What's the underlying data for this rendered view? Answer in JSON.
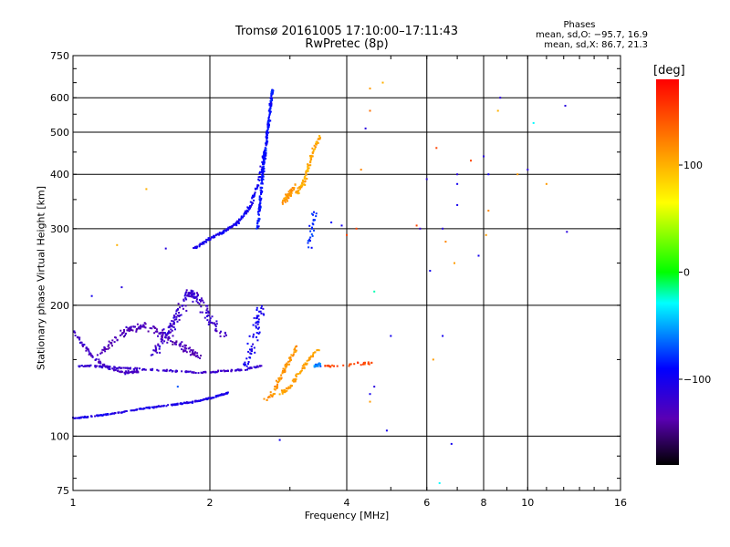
{
  "chart_data": {
    "type": "scatter",
    "title": "Tromsø 20161005 17:10:00–17:11:43",
    "subtitle": "RwPretec (8p)",
    "xlabel": "Frequency [MHz]",
    "ylabel": "Stationary phase Virtual Height [km]",
    "x_scale": "log",
    "y_scale": "log",
    "xlim": [
      1,
      16
    ],
    "ylim": [
      75,
      750
    ],
    "x_ticks": [
      1,
      2,
      4,
      6,
      8,
      10,
      16
    ],
    "y_ticks": [
      75,
      100,
      200,
      300,
      400,
      500,
      600,
      750
    ],
    "grid": true,
    "phase_legend": {
      "title": "Phases",
      "o_mode": "mean, sd,O: −95.7, 16.9",
      "x_mode": "mean, sd,X:  86.7, 21.3"
    },
    "colorbar": {
      "unit": "[deg]",
      "range": [
        -180,
        180
      ],
      "ticks": [
        100,
        0,
        -100
      ],
      "tick_labels": [
        "100",
        "0",
        "−100"
      ]
    },
    "trace_groups": [
      {
        "x": [
          1.0,
          1.1,
          1.25,
          1.45,
          1.65,
          1.85,
          2.05,
          2.2
        ],
        "y": [
          110,
          111,
          113,
          116,
          118,
          120,
          123,
          126
        ],
        "phase": -105,
        "jitter": 0.004,
        "count": 230
      },
      {
        "x": [
          1.0,
          1.05,
          1.12,
          1.2,
          1.3,
          1.4
        ],
        "y": [
          175,
          162,
          150,
          143,
          140,
          141
        ],
        "phase": -125,
        "jitter": 0.008,
        "count": 110
      },
      {
        "x": [
          1.03,
          1.1,
          1.2,
          1.35,
          1.5,
          1.7,
          1.9,
          2.1,
          2.35,
          2.6
        ],
        "y": [
          145,
          145,
          144,
          143,
          142,
          141,
          140,
          141,
          142,
          145
        ],
        "phase": -120,
        "jitter": 0.005,
        "count": 180
      },
      {
        "x": [
          1.15,
          1.3,
          1.45,
          1.6,
          1.75,
          1.9
        ],
        "y": [
          155,
          175,
          180,
          170,
          160,
          152
        ],
        "phase": -132,
        "jitter": 0.02,
        "count": 160
      },
      {
        "x": [
          1.5,
          1.6,
          1.7,
          1.8,
          1.9,
          2.0,
          2.15
        ],
        "y": [
          155,
          170,
          190,
          215,
          205,
          185,
          170
        ],
        "phase": -122,
        "jitter": 0.025,
        "count": 180
      },
      {
        "x": [
          1.85,
          2.0,
          2.15,
          2.3,
          2.45,
          2.55,
          2.65
        ],
        "y": [
          270,
          285,
          295,
          310,
          335,
          380,
          450
        ],
        "phase": -100,
        "jitter": 0.008,
        "count": 190
      },
      {
        "x": [
          2.55,
          2.6,
          2.65,
          2.7,
          2.75
        ],
        "y": [
          300,
          380,
          460,
          540,
          630
        ],
        "phase": -88,
        "jitter": 0.006,
        "count": 240
      },
      {
        "x": [
          2.4,
          2.5,
          2.6
        ],
        "y": [
          145,
          165,
          200
        ],
        "phase": -100,
        "jitter": 0.02,
        "count": 60
      },
      {
        "x": [
          2.6,
          2.75,
          2.9,
          3.0,
          3.1
        ],
        "y": [
          120,
          125,
          140,
          150,
          160
        ],
        "phase": 115,
        "jitter": 0.01,
        "count": 80
      },
      {
        "x": [
          2.85,
          3.0,
          3.15,
          3.3,
          3.45
        ],
        "y": [
          125,
          130,
          140,
          150,
          158
        ],
        "phase": 108,
        "jitter": 0.01,
        "count": 70
      },
      {
        "x": [
          3.1,
          3.2,
          3.3,
          3.4,
          3.5
        ],
        "y": [
          360,
          380,
          420,
          460,
          490
        ],
        "phase": 105,
        "jitter": 0.01,
        "count": 90
      },
      {
        "x": [
          2.9,
          3.0,
          3.1
        ],
        "y": [
          345,
          360,
          380
        ],
        "phase": 112,
        "jitter": 0.012,
        "count": 50
      },
      {
        "x": [
          3.4,
          3.5
        ],
        "y": [
          145,
          146
        ],
        "phase": -60,
        "jitter": 0.01,
        "count": 25
      },
      {
        "x": [
          3.3,
          3.35,
          3.4
        ],
        "y": [
          270,
          300,
          330
        ],
        "phase": -80,
        "jitter": 0.015,
        "count": 25
      },
      {
        "x": [
          3.6,
          4.0,
          4.3,
          4.6
        ],
        "y": [
          145,
          146,
          147,
          148
        ],
        "phase": 150,
        "jitter": 0.01,
        "count": 30
      }
    ],
    "isolated_points": [
      {
        "x": 1.1,
        "y": 210,
        "phase": -100
      },
      {
        "x": 1.28,
        "y": 220,
        "phase": -110
      },
      {
        "x": 1.45,
        "y": 370,
        "phase": 100
      },
      {
        "x": 1.25,
        "y": 275,
        "phase": 100
      },
      {
        "x": 1.6,
        "y": 270,
        "phase": -110
      },
      {
        "x": 1.7,
        "y": 130,
        "phase": -70
      },
      {
        "x": 2.85,
        "y": 98,
        "phase": -100
      },
      {
        "x": 3.7,
        "y": 310,
        "phase": -90
      },
      {
        "x": 3.9,
        "y": 305,
        "phase": -100
      },
      {
        "x": 4.0,
        "y": 290,
        "phase": 150
      },
      {
        "x": 4.2,
        "y": 300,
        "phase": 150
      },
      {
        "x": 4.3,
        "y": 410,
        "phase": 120
      },
      {
        "x": 4.4,
        "y": 510,
        "phase": -110
      },
      {
        "x": 4.5,
        "y": 560,
        "phase": 130
      },
      {
        "x": 4.5,
        "y": 630,
        "phase": 110
      },
      {
        "x": 4.8,
        "y": 650,
        "phase": 100
      },
      {
        "x": 4.5,
        "y": 125,
        "phase": -100
      },
      {
        "x": 4.5,
        "y": 120,
        "phase": 110
      },
      {
        "x": 4.6,
        "y": 130,
        "phase": -110
      },
      {
        "x": 4.9,
        "y": 103,
        "phase": -100
      },
      {
        "x": 4.6,
        "y": 215,
        "phase": -20
      },
      {
        "x": 5.0,
        "y": 170,
        "phase": -100
      },
      {
        "x": 5.7,
        "y": 305,
        "phase": 150
      },
      {
        "x": 5.8,
        "y": 300,
        "phase": -120
      },
      {
        "x": 6.0,
        "y": 390,
        "phase": -110
      },
      {
        "x": 6.1,
        "y": 240,
        "phase": -100
      },
      {
        "x": 6.2,
        "y": 150,
        "phase": 110
      },
      {
        "x": 6.5,
        "y": 300,
        "phase": -110
      },
      {
        "x": 6.5,
        "y": 170,
        "phase": -100
      },
      {
        "x": 6.6,
        "y": 280,
        "phase": 120
      },
      {
        "x": 6.3,
        "y": 460,
        "phase": 150
      },
      {
        "x": 6.4,
        "y": 78,
        "phase": -30
      },
      {
        "x": 6.8,
        "y": 96,
        "phase": -100
      },
      {
        "x": 6.9,
        "y": 250,
        "phase": 110
      },
      {
        "x": 7.0,
        "y": 400,
        "phase": -110
      },
      {
        "x": 7.0,
        "y": 380,
        "phase": -100
      },
      {
        "x": 7.0,
        "y": 340,
        "phase": -100
      },
      {
        "x": 7.5,
        "y": 430,
        "phase": 150
      },
      {
        "x": 7.8,
        "y": 260,
        "phase": -100
      },
      {
        "x": 8.0,
        "y": 440,
        "phase": -110
      },
      {
        "x": 8.2,
        "y": 400,
        "phase": -100
      },
      {
        "x": 8.2,
        "y": 330,
        "phase": 120
      },
      {
        "x": 8.1,
        "y": 290,
        "phase": 110
      },
      {
        "x": 8.6,
        "y": 560,
        "phase": 100
      },
      {
        "x": 8.7,
        "y": 600,
        "phase": -110
      },
      {
        "x": 9.5,
        "y": 400,
        "phase": 110
      },
      {
        "x": 10.0,
        "y": 410,
        "phase": -110
      },
      {
        "x": 10.3,
        "y": 525,
        "phase": -30
      },
      {
        "x": 11.0,
        "y": 380,
        "phase": 110
      },
      {
        "x": 12.1,
        "y": 575,
        "phase": -110
      },
      {
        "x": 12.2,
        "y": 295,
        "phase": -110
      }
    ]
  }
}
